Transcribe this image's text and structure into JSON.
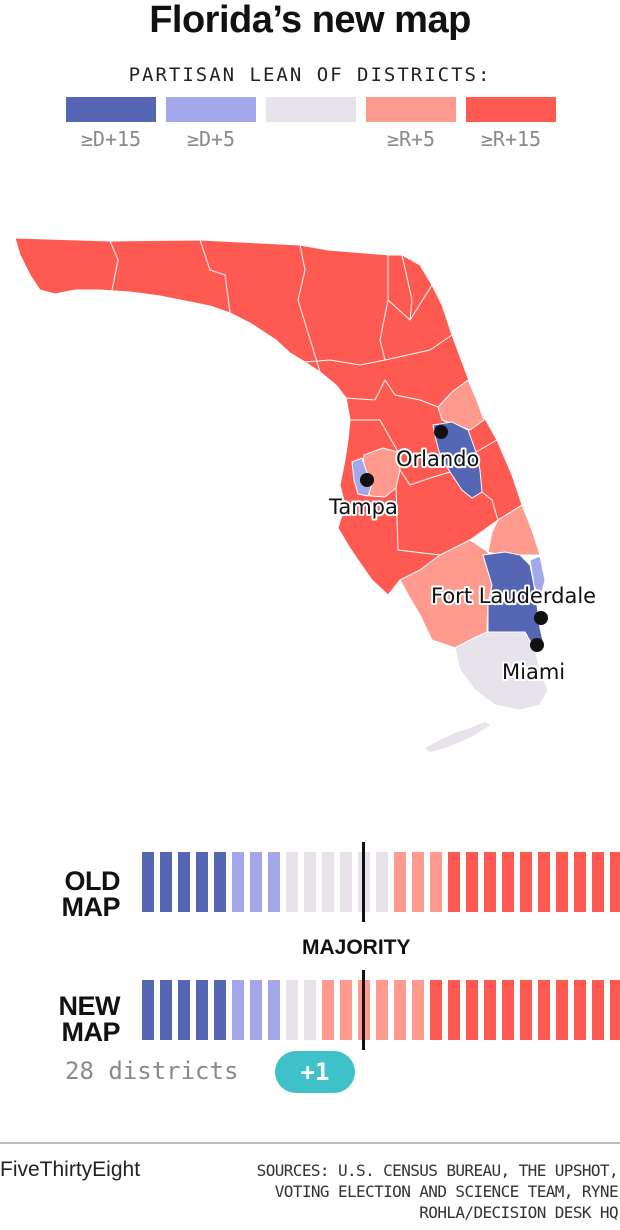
{
  "title": "Florida’s new map",
  "legend": {
    "title": "PARTISAN LEAN OF DISTRICTS:",
    "items": [
      {
        "label": "≥D+15",
        "color": "#5466b4"
      },
      {
        "label": "≥D+5",
        "color": "#a4a8ea"
      },
      {
        "label": "",
        "color": "#e8e2eb"
      },
      {
        "label": "≥R+5",
        "color": "#ff9b8e"
      },
      {
        "label": "≥R+15",
        "color": "#ff5a52"
      }
    ]
  },
  "map": {
    "cities": [
      {
        "name": "Orlando"
      },
      {
        "name": "Tampa"
      },
      {
        "name": "Fort Lauderdale"
      },
      {
        "name": "Miami"
      }
    ]
  },
  "comparison": {
    "old_label_line1": "OLD",
    "old_label_line2": "MAP",
    "new_label_line1": "NEW",
    "new_label_line2": "MAP",
    "majority_label": "MAJORITY",
    "old_map": {
      "strong_d": 5,
      "lean_d": 3,
      "tossup": 6,
      "lean_r": 3,
      "strong_r": 10
    },
    "new_map": {
      "strong_d": 5,
      "lean_d": 3,
      "tossup": 2,
      "lean_r": 6,
      "strong_r": 12
    },
    "districts_text": "28 districts",
    "change_badge": "+1"
  },
  "footer": {
    "brand": "FiveThirtyEight",
    "sources": "SOURCES: U.S. CENSUS BUREAU, THE UPSHOT, VOTING ELECTION AND SCIENCE TEAM, RYNE ROHLA/DECISION DESK HQ"
  }
}
